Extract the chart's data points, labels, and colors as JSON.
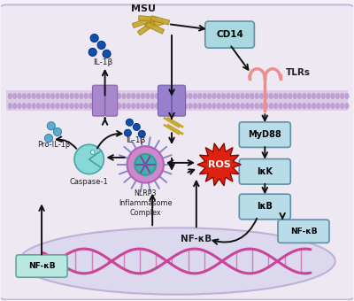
{
  "bg_color": "#f5f0f8",
  "cell_bg": "#ede8f2",
  "membrane_color": "#c8a8d8",
  "labels": {
    "MSU": "MSU",
    "CD14": "CD14",
    "TLRs": "TLRs",
    "MyD88": "MyD88",
    "IKK": "IκK",
    "IKB": "IκB",
    "NFKB_right": "NF-κB",
    "NFKB_center": "NF-κB",
    "NFKB_left": "NF-κB",
    "ROS": "ROS",
    "NLRP3": "NLRP3\nInflammasome\nComplex",
    "Caspase1": "Caspase-1",
    "ProIL1b": "Pro-IL-1β",
    "IL1b_inner": "IL-1β",
    "IL1b_outer": "IL-1β"
  },
  "colors": {
    "box_blue": "#b8dce8",
    "box_stroke": "#6090a8",
    "cd14_fill": "#a8d8e0",
    "ros_red": "#dd2211",
    "ros_text": "#ffffff",
    "arrow": "#111111",
    "membrane_fill": "#c8a8d8",
    "membrane_dot": "#b090c0",
    "dna_color": "#cc4499",
    "nucleus_fill": "#dcd8ee",
    "nucleus_outline": "#c0b0d8",
    "nlrp3_spike": "#8888cc",
    "nlrp3_outer_fill": "#cc88cc",
    "nlrp3_inner_fill": "#44b0a8",
    "nlrp3_center": "#9030b0",
    "caspase_fill": "#88d8d8",
    "caspase_stroke": "#44a8a8",
    "il1b_dark": "#1050a8",
    "il1b_mid": "#3070b8",
    "pro_il1b": "#60aacc",
    "msu_crystal": "#c8a830",
    "msu_edge": "#a08818",
    "tlr_color": "#e89090",
    "channel_fill": "#a888cc",
    "channel_edge": "#8860a8"
  }
}
